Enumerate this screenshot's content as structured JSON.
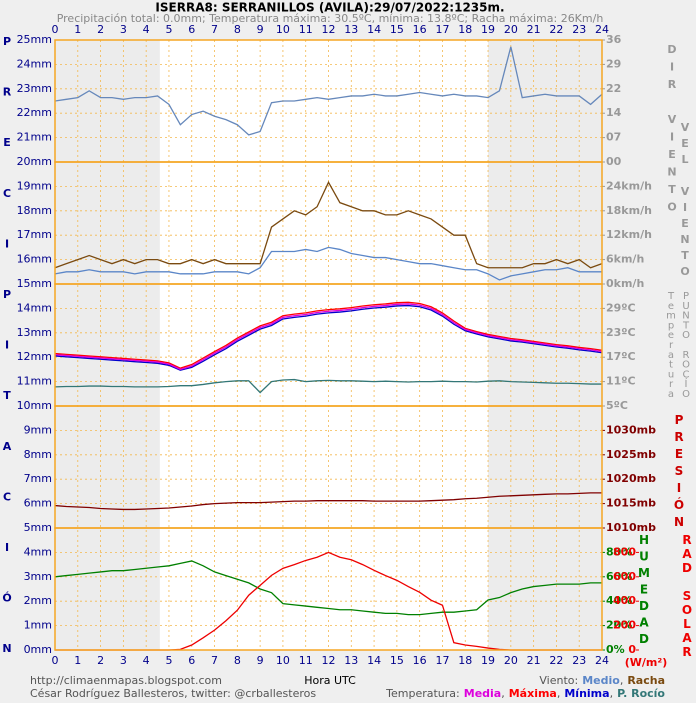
{
  "header": {
    "title": "ISERRA8: SERRANILLOS (AVILA):29/07/2022:1235m.",
    "subtitle": "Precipitación total: 0.0mm; Temperatura máxima: 30.5ºC, mínima: 13.8ºC; Racha máxima: 26Km/h"
  },
  "footer": {
    "url": "http://climaenmapas.blogspot.com",
    "author": "César Rodríguez Ballesteros, twitter: @crballesteros"
  },
  "chart_data": [
    {
      "type": "line",
      "x_label": "Hora UTC",
      "y_label": "PRECIPITACIÓN",
      "y_label_color": "#00008b",
      "tick_color": "#00008b",
      "xlim": [
        0,
        24
      ],
      "xticks": [
        0,
        1,
        2,
        3,
        4,
        5,
        6,
        7,
        8,
        9,
        10,
        11,
        12,
        13,
        14,
        15,
        16,
        17,
        18,
        19,
        20,
        21,
        22,
        23,
        24
      ],
      "ylim": [
        0,
        25
      ],
      "yticks": [
        {
          "value": 0,
          "label": "0mm"
        },
        {
          "value": 1,
          "label": "1mm"
        },
        {
          "value": 2,
          "label": "2mm"
        },
        {
          "value": 3,
          "label": "3mm"
        },
        {
          "value": 4,
          "label": "4mm"
        },
        {
          "value": 5,
          "label": "5mm"
        },
        {
          "value": 6,
          "label": "6mm"
        },
        {
          "value": 7,
          "label": "7mm"
        },
        {
          "value": 8,
          "label": "8mm"
        },
        {
          "value": 9,
          "label": "9mm"
        },
        {
          "value": 10,
          "label": "10mm"
        },
        {
          "value": 11,
          "label": "11mm"
        },
        {
          "value": 12,
          "label": "12mm"
        },
        {
          "value": 13,
          "label": "13mm"
        },
        {
          "value": 14,
          "label": "14mm"
        },
        {
          "value": 15,
          "label": "15mm"
        },
        {
          "value": 16,
          "label": "16mm"
        },
        {
          "value": 17,
          "label": "17mm"
        },
        {
          "value": 18,
          "label": "18mm"
        },
        {
          "value": 19,
          "label": "19mm"
        },
        {
          "value": 20,
          "label": "20mm"
        },
        {
          "value": 21,
          "label": "21mm"
        },
        {
          "value": 22,
          "label": "22mm"
        },
        {
          "value": 23,
          "label": "23mm"
        },
        {
          "value": 24,
          "label": "24mm"
        },
        {
          "value": 25,
          "label": "25mm"
        }
      ],
      "grid": true,
      "shaded": [
        [
          0,
          4.6
        ],
        [
          19,
          24
        ]
      ],
      "legend_separator": ","
    },
    {
      "type": "line",
      "y_labels": [
        {
          "text": "DIR VIENTO",
          "color": "#999999"
        }
      ],
      "tick_color": "#999999",
      "x": [
        0,
        0.5,
        1,
        1.5,
        2,
        2.5,
        3,
        3.5,
        4,
        4.5,
        5,
        5.5,
        6,
        6.5,
        7,
        7.5,
        8,
        8.5,
        9,
        9.5,
        10,
        10.5,
        11,
        11.5,
        12,
        12.5,
        13,
        13.5,
        14,
        14.5,
        15,
        15.5,
        16,
        16.5,
        17,
        17.5,
        18,
        18.5,
        19,
        19.5,
        20,
        20.5,
        21,
        21.5,
        22,
        22.5,
        23,
        23.5,
        24
      ],
      "ylim": [
        0,
        36
      ],
      "yticks": [
        {
          "value": 0,
          "label": "00"
        },
        {
          "value": 7.2,
          "label": "07"
        },
        {
          "value": 14.4,
          "label": "14"
        },
        {
          "value": 21.6,
          "label": "22"
        },
        {
          "value": 28.8,
          "label": "29"
        },
        {
          "value": 36,
          "label": "36"
        }
      ],
      "series": [
        {
          "color": "#6688bb",
          "values": [
            18,
            18.5,
            19,
            21,
            19,
            19,
            18.5,
            19,
            19,
            19.5,
            17,
            11,
            14,
            15,
            13.5,
            12.5,
            11,
            8,
            9,
            17.5,
            18,
            18,
            18.5,
            19,
            18.5,
            19,
            19.5,
            19.5,
            20,
            19.5,
            19.5,
            20,
            20.5,
            20,
            19.5,
            20,
            19.5,
            19.5,
            19,
            21,
            34,
            19,
            19.5,
            20,
            19.5,
            19.5,
            19.5,
            17,
            20
          ]
        }
      ]
    },
    {
      "type": "line",
      "y_labels": [
        {
          "text": "VEL VIENTO",
          "color": "#999999"
        }
      ],
      "tick_color": "#999999",
      "legend_label": "Viento:",
      "x": [
        0,
        0.5,
        1,
        1.5,
        2,
        2.5,
        3,
        3.5,
        4,
        4.5,
        5,
        5.5,
        6,
        6.5,
        7,
        7.5,
        8,
        8.5,
        9,
        9.5,
        10,
        10.5,
        11,
        11.5,
        12,
        12.5,
        13,
        13.5,
        14,
        14.5,
        15,
        15.5,
        16,
        16.5,
        17,
        17.5,
        18,
        18.5,
        19,
        19.5,
        20,
        20.5,
        21,
        21.5,
        22,
        22.5,
        23,
        23.5,
        24
      ],
      "ylim": [
        0,
        30
      ],
      "yticks": [
        {
          "value": 0,
          "label": "0km/h"
        },
        {
          "value": 6,
          "label": "6km/h"
        },
        {
          "value": 12,
          "label": "12km/h"
        },
        {
          "value": 18,
          "label": "18km/h"
        },
        {
          "value": 24,
          "label": "24km/h"
        }
      ],
      "series": [
        {
          "name": "Medio",
          "color": "#5b86c8",
          "values": [
            2.5,
            3,
            3,
            3.5,
            3,
            3,
            3,
            2.5,
            3,
            3,
            3,
            2.5,
            2.5,
            2.5,
            3,
            3,
            3,
            2.5,
            4,
            8,
            8,
            8,
            8.5,
            8,
            9,
            8.5,
            7.5,
            7,
            6.5,
            6.5,
            6,
            5.5,
            5,
            5,
            4.5,
            4,
            3.5,
            3.5,
            2.5,
            1,
            2,
            2.5,
            3,
            3.5,
            3.5,
            4,
            3,
            3,
            3
          ]
        },
        {
          "name": "Racha",
          "color": "#7a4a10",
          "values": [
            4,
            5,
            6,
            7,
            6,
            5,
            6,
            5,
            6,
            6,
            5,
            5,
            6,
            5,
            6,
            5,
            5,
            5,
            5,
            14,
            16,
            18,
            17,
            19,
            25,
            20,
            19,
            18,
            18,
            17,
            17,
            18,
            17,
            16,
            14,
            12,
            12,
            5,
            4,
            4,
            4,
            4,
            5,
            5,
            6,
            5,
            6,
            4,
            5
          ]
        }
      ]
    },
    {
      "type": "line",
      "y_labels": [
        {
          "text": "Temperatura",
          "color": "#999999"
        },
        {
          "text": "PUNTO ROCÍO",
          "color": "#999999"
        }
      ],
      "tick_color": "#999999",
      "legend_label": "Temperatura:",
      "x": [
        0,
        0.5,
        1,
        1.5,
        2,
        2.5,
        3,
        3.5,
        4,
        4.5,
        5,
        5.5,
        6,
        6.5,
        7,
        7.5,
        8,
        8.5,
        9,
        9.5,
        10,
        10.5,
        11,
        11.5,
        12,
        12.5,
        13,
        13.5,
        14,
        14.5,
        15,
        15.5,
        16,
        16.5,
        17,
        17.5,
        18,
        18.5,
        19,
        19.5,
        20,
        20.5,
        21,
        21.5,
        22,
        22.5,
        23,
        23.5,
        24
      ],
      "ylim": [
        5,
        35
      ],
      "yticks": [
        {
          "value": 5,
          "label": "5ºC"
        },
        {
          "value": 11,
          "label": "11ºC"
        },
        {
          "value": 17,
          "label": "17ºC"
        },
        {
          "value": 23,
          "label": "23ºC"
        },
        {
          "value": 29,
          "label": "29ºC"
        }
      ],
      "series": [
        {
          "name": "Media",
          "color": "#dd00dd",
          "values": [
            17.6,
            17.4,
            17.2,
            17,
            16.8,
            16.6,
            16.4,
            16.2,
            16,
            15.8,
            15.3,
            14,
            14.8,
            16.4,
            18,
            19.5,
            21.3,
            22.8,
            24.3,
            25.2,
            26.8,
            27.2,
            27.5,
            28,
            28.3,
            28.5,
            28.8,
            29.2,
            29.5,
            29.7,
            30,
            30.1,
            29.8,
            29,
            27.5,
            25.5,
            23.8,
            23,
            22.3,
            21.8,
            21.3,
            21,
            20.6,
            20.2,
            19.8,
            19.5,
            19.1,
            18.8,
            18.4
          ]
        },
        {
          "name": "Máxima",
          "color": "#ff0000",
          "values": [
            17.9,
            17.7,
            17.5,
            17.3,
            17.1,
            16.9,
            16.7,
            16.5,
            16.3,
            16.1,
            15.6,
            14.3,
            15.2,
            16.8,
            18.4,
            19.9,
            21.7,
            23.2,
            24.7,
            25.6,
            27.2,
            27.6,
            27.9,
            28.4,
            28.7,
            28.9,
            29.2,
            29.6,
            29.9,
            30.1,
            30.4,
            30.5,
            30.2,
            29.4,
            27.9,
            25.9,
            24.1,
            23.3,
            22.6,
            22.1,
            21.6,
            21.3,
            20.9,
            20.5,
            20.1,
            19.8,
            19.4,
            19.1,
            18.7
          ]
        },
        {
          "name": "Mínima",
          "color": "#0000cc",
          "values": [
            17.3,
            17.1,
            16.9,
            16.7,
            16.5,
            16.3,
            16.1,
            15.9,
            15.7,
            15.5,
            15,
            13.8,
            14.5,
            16,
            17.6,
            19.1,
            20.9,
            22.4,
            23.9,
            24.8,
            26.4,
            26.8,
            27.1,
            27.6,
            27.9,
            28.1,
            28.4,
            28.8,
            29.1,
            29.3,
            29.6,
            29.7,
            29.4,
            28.6,
            27.1,
            25.1,
            23.5,
            22.7,
            22,
            21.5,
            21,
            20.7,
            20.3,
            19.9,
            19.5,
            19.2,
            18.8,
            18.5,
            18.1
          ]
        },
        {
          "name": "P. Rocío",
          "color": "#337777",
          "values": [
            9.7,
            9.8,
            9.8,
            9.9,
            9.9,
            9.8,
            9.8,
            9.7,
            9.7,
            9.7,
            9.8,
            10,
            10,
            10.3,
            10.7,
            11,
            11.2,
            11.2,
            8.3,
            11,
            11.4,
            11.5,
            11,
            11.2,
            11.3,
            11.2,
            11.2,
            11.1,
            11,
            11.1,
            11,
            10.9,
            11,
            11,
            11.1,
            11,
            11,
            10.9,
            11.1,
            11.2,
            11,
            10.9,
            10.8,
            10.7,
            10.6,
            10.6,
            10.5,
            10.4,
            10.4
          ]
        }
      ]
    },
    {
      "type": "line",
      "y_labels": [
        {
          "text": "PRESIÓN",
          "color": "#cc0000"
        }
      ],
      "tick_color": "#800000",
      "x": [
        0,
        0.5,
        1,
        1.5,
        2,
        2.5,
        3,
        3.5,
        4,
        4.5,
        5,
        5.5,
        6,
        6.5,
        7,
        7.5,
        8,
        8.5,
        9,
        9.5,
        10,
        10.5,
        11,
        11.5,
        12,
        12.5,
        13,
        13.5,
        14,
        14.5,
        15,
        15.5,
        16,
        16.5,
        17,
        17.5,
        18,
        18.5,
        19,
        19.5,
        20,
        20.5,
        21,
        21.5,
        22,
        22.5,
        23,
        23.5,
        24
      ],
      "ylim": [
        1010,
        1035
      ],
      "yticks": [
        {
          "value": 1010,
          "label": "1010mb"
        },
        {
          "value": 1015,
          "label": "1015mb"
        },
        {
          "value": 1020,
          "label": "1020mb"
        },
        {
          "value": 1025,
          "label": "1025mb"
        },
        {
          "value": 1030,
          "label": "1030mb"
        }
      ],
      "series": [
        {
          "color": "#800000",
          "values": [
            1014.6,
            1014.4,
            1014.3,
            1014.2,
            1014,
            1013.9,
            1013.8,
            1013.8,
            1013.9,
            1014,
            1014.1,
            1014.3,
            1014.5,
            1014.8,
            1015,
            1015.1,
            1015.2,
            1015.2,
            1015.2,
            1015.3,
            1015.4,
            1015.5,
            1015.5,
            1015.6,
            1015.6,
            1015.6,
            1015.6,
            1015.6,
            1015.5,
            1015.5,
            1015.5,
            1015.5,
            1015.5,
            1015.6,
            1015.7,
            1015.8,
            1016,
            1016.1,
            1016.3,
            1016.5,
            1016.6,
            1016.7,
            1016.8,
            1016.9,
            1017,
            1017,
            1017.1,
            1017.2,
            1017.2
          ]
        }
      ]
    },
    {
      "type": "line",
      "y_labels": [
        {
          "text": "HUMEDAD",
          "color": "#008000"
        },
        {
          "text": "RAD SOLAR",
          "color": "#ee0000"
        }
      ],
      "y2_unit": "(W/m²)",
      "tick_color": "#008000",
      "y2_tick_color": "#ee0000",
      "x": [
        0,
        0.5,
        1,
        1.5,
        2,
        2.5,
        3,
        3.5,
        4,
        4.5,
        5,
        5.5,
        6,
        6.5,
        7,
        7.5,
        8,
        8.5,
        9,
        9.5,
        10,
        10.5,
        11,
        11.5,
        12,
        12.5,
        13,
        13.5,
        14,
        14.5,
        15,
        15.5,
        16,
        16.5,
        17,
        17.5,
        18,
        18.5,
        19,
        19.5,
        20,
        20.5,
        21,
        21.5,
        22,
        22.5,
        23,
        23.5,
        24
      ],
      "ylim": [
        0,
        100
      ],
      "yticks": [
        {
          "value": 0,
          "label": "0%"
        },
        {
          "value": 20,
          "label": "20%"
        },
        {
          "value": 40,
          "label": "40%"
        },
        {
          "value": 60,
          "label": "60%"
        },
        {
          "value": 80,
          "label": "80%"
        }
      ],
      "y2lim": [
        0,
        1000
      ],
      "y2ticks": [
        0,
        200,
        400,
        600,
        800
      ],
      "series": [
        {
          "color": "#008000",
          "values": [
            60,
            61,
            62,
            63,
            64,
            65,
            65,
            66,
            67,
            68,
            69,
            71,
            73,
            69,
            64,
            61,
            58,
            55,
            50,
            47,
            38,
            37,
            36,
            35,
            34,
            33,
            33,
            32,
            31,
            30,
            30,
            29,
            29,
            30,
            31,
            31,
            32,
            33,
            41,
            43,
            47,
            50,
            52,
            53,
            54,
            54,
            54,
            55,
            55
          ]
        },
        {
          "color": "#ee0000",
          "axis": "y2",
          "values": [
            0,
            0,
            0,
            0,
            0,
            0,
            0,
            0,
            0,
            0,
            0,
            5,
            41,
            100,
            163,
            240,
            326,
            449,
            530,
            612,
            669,
            700,
            734,
            760,
            800,
            760,
            740,
            700,
            653,
            610,
            571,
            520,
            473,
            408,
            367,
            60,
            41,
            30,
            16,
            5,
            0,
            0,
            0,
            0,
            0,
            0,
            0,
            0,
            0
          ]
        }
      ]
    }
  ]
}
